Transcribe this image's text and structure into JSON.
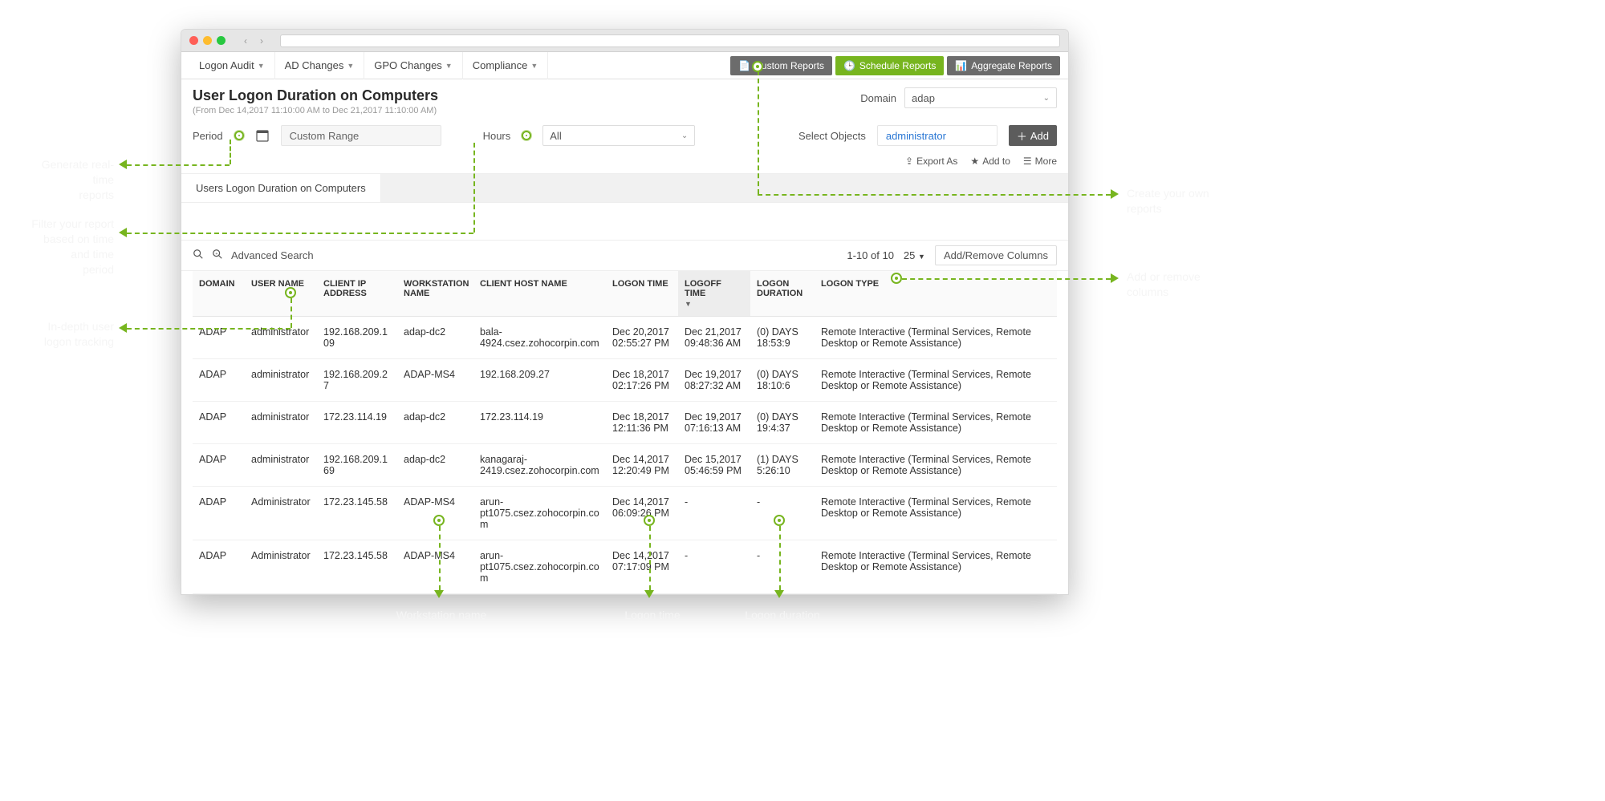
{
  "menus": {
    "logon_audit": "Logon Audit",
    "ad_changes": "AD Changes",
    "gpo_changes": "GPO Changes",
    "compliance": "Compliance"
  },
  "report_buttons": {
    "custom": "Custom Reports",
    "schedule": "Schedule Reports",
    "aggregate": "Aggregate Reports"
  },
  "header": {
    "title": "User Logon Duration on Computers",
    "subtitle": "(From Dec 14,2017 11:10:00 AM to Dec 21,2017 11:10:00 AM)",
    "domain_label": "Domain",
    "domain_value": "adap"
  },
  "filters": {
    "period_label": "Period",
    "period_value": "Custom Range",
    "hours_label": "Hours",
    "hours_value": "All",
    "select_objects_label": "Select Objects",
    "select_objects_value": "administrator",
    "add_label": "Add"
  },
  "actions": {
    "export": "Export As",
    "addto": "Add to",
    "more": "More"
  },
  "tab": {
    "label": "Users Logon Duration on Computers"
  },
  "tablectrl": {
    "advanced_search": "Advanced Search",
    "range": "1-10 of 10",
    "pagesize": "25",
    "columns_btn": "Add/Remove Columns"
  },
  "columns": {
    "domain": "DOMAIN",
    "user": "USER NAME",
    "ip": "CLIENT IP ADDRESS",
    "ws": "WORKSTATION NAME",
    "host": "CLIENT HOST NAME",
    "logon": "LOGON TIME",
    "logoff": "LOGOFF TIME",
    "dur": "LOGON DURATION",
    "type": "LOGON TYPE"
  },
  "rows": [
    {
      "domain": "ADAP",
      "user": "administrator",
      "ip": "192.168.209.109",
      "ws": "adap-dc2",
      "host": "bala-4924.csez.zohocorpin.com",
      "logon": "Dec 20,2017 02:55:27 PM",
      "logoff": "Dec 21,2017 09:48:36 AM",
      "dur": "(0) DAYS 18:53:9",
      "type": "Remote Interactive (Terminal Services, Remote Desktop or Remote Assistance)"
    },
    {
      "domain": "ADAP",
      "user": "administrator",
      "ip": "192.168.209.27",
      "ws": "ADAP-MS4",
      "host": "192.168.209.27",
      "logon": "Dec 18,2017 02:17:26 PM",
      "logoff": "Dec 19,2017 08:27:32 AM",
      "dur": "(0) DAYS 18:10:6",
      "type": "Remote Interactive (Terminal Services, Remote Desktop or Remote Assistance)"
    },
    {
      "domain": "ADAP",
      "user": "administrator",
      "ip": "172.23.114.19",
      "ws": "adap-dc2",
      "host": "172.23.114.19",
      "logon": "Dec 18,2017 12:11:36 PM",
      "logoff": "Dec 19,2017 07:16:13 AM",
      "dur": "(0) DAYS 19:4:37",
      "type": "Remote Interactive (Terminal Services, Remote Desktop or Remote Assistance)"
    },
    {
      "domain": "ADAP",
      "user": "administrator",
      "ip": "192.168.209.169",
      "ws": "adap-dc2",
      "host": "kanagaraj-2419.csez.zohocorpin.com",
      "logon": "Dec 14,2017 12:20:49 PM",
      "logoff": "Dec 15,2017 05:46:59 PM",
      "dur": "(1) DAYS 5:26:10",
      "type": "Remote Interactive (Terminal Services, Remote Desktop or Remote Assistance)"
    },
    {
      "domain": "ADAP",
      "user": "Administrator",
      "ip": "172.23.145.58",
      "ws": "ADAP-MS4",
      "host": "arun-pt1075.csez.zohocorpin.com",
      "logon": "Dec 14,2017 06:09:26 PM",
      "logoff": "-",
      "dur": "-",
      "type": "Remote Interactive (Terminal Services, Remote Desktop or Remote Assistance)"
    },
    {
      "domain": "ADAP",
      "user": "Administrator",
      "ip": "172.23.145.58",
      "ws": "ADAP-MS4",
      "host": "arun-pt1075.csez.zohocorpin.com",
      "logon": "Dec 14,2017 07:17:09 PM",
      "logoff": "-",
      "dur": "-",
      "type": "Remote Interactive (Terminal Services, Remote Desktop or Remote Assistance)"
    }
  ],
  "annotations": {
    "a1": "Generate real-time\nreports",
    "a2": "Filter your report\nbased on time and time\nperiod",
    "a3": "In-depth user\nlogon tracking",
    "a4": "Workstation name",
    "a5": "Logon time",
    "a6": "Logon duration",
    "a7": "Create your own\nreports",
    "a8": "Add or remove\ncolumns"
  },
  "colors": {
    "accent": "#77b51f",
    "btn_gray": "#6c6c6c",
    "link": "#2a77d4"
  }
}
